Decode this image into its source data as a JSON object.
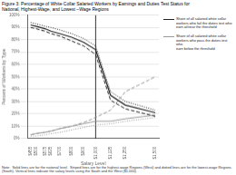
{
  "chart_data": {
    "type": "line",
    "title": "Figure 3: Percentage of White Collar Salaried Workers by Earnings and Duties Test Status for",
    "subtitle": "National, Highest-Wage, and Lowest –Wage Regions",
    "x_label": "Salary Level",
    "y_label": "Percent of Workers by Type",
    "annotations": [
      "Note:  Solid lines are for the national level.  Striped lines are for the highest-wage Regions (West) and dotted lines are for the lowest-wage Regions (South). Vertical lines indicate the salary levels using the South and the West ($1,000)."
    ],
    "x": [
      455,
      500,
      575,
      625,
      700,
      800,
      900,
      1000,
      1125,
      1250,
      1500
    ],
    "series": [
      {
        "name": "Share of all salaried white collar\nworkers who fail the duties test who\nearn at/near the threshold",
        "color": "#222222",
        "line_style": "solid",
        "values": [
          0.92,
          0.91,
          0.89,
          0.87,
          0.85,
          0.82,
          0.78,
          0.72,
          0.35,
          0.27,
          0.21
        ]
      },
      {
        "color": "#222222",
        "line_style": "dashed",
        "values": [
          0.9,
          0.89,
          0.87,
          0.85,
          0.83,
          0.79,
          0.75,
          0.68,
          0.31,
          0.24,
          0.18
        ]
      },
      {
        "color": "#222222",
        "line_style": "dotted",
        "values": [
          0.94,
          0.93,
          0.91,
          0.9,
          0.88,
          0.85,
          0.81,
          0.75,
          0.38,
          0.3,
          0.23
        ]
      },
      {
        "name": "Share of all salaried white collar\nworkers who pass the duties test who\nearn below the threshold",
        "color": "#999999",
        "line_style": "solid",
        "values": [
          0.03,
          0.04,
          0.05,
          0.06,
          0.08,
          0.1,
          0.12,
          0.14,
          0.14,
          0.16,
          0.19
        ]
      },
      {
        "color": "#999999",
        "line_style": "dashed",
        "values": [
          0.03,
          0.04,
          0.05,
          0.06,
          0.08,
          0.1,
          0.13,
          0.17,
          0.23,
          0.38,
          0.5
        ]
      },
      {
        "color": "#999999",
        "line_style": "dotted",
        "values": [
          0.02,
          0.02,
          0.03,
          0.04,
          0.05,
          0.07,
          0.09,
          0.11,
          0.12,
          0.14,
          0.17
        ]
      }
    ],
    "vertical_lines": [
      1000
    ],
    "xlim": [
      430,
      1530
    ],
    "xticks": [
      {
        "value": 455,
        "label": "$455"
      },
      {
        "value": 500,
        "label": "$500"
      },
      {
        "value": 575,
        "label": "$575"
      },
      {
        "value": 625,
        "label": "$625"
      },
      {
        "value": 700,
        "label": "$700"
      },
      {
        "value": 800,
        "label": "$800"
      },
      {
        "value": 900,
        "label": "$900"
      },
      {
        "value": 1000,
        "label": "$1,000"
      },
      {
        "value": 1125,
        "label": "$1,125"
      },
      {
        "value": 1250,
        "label": "$1,250"
      },
      {
        "value": 1500,
        "label": "$1,500"
      }
    ],
    "ylim": [
      0,
      1.0
    ],
    "yticks": [
      {
        "value": 0.0,
        "label": "0%"
      },
      {
        "value": 0.1,
        "label": "10%"
      },
      {
        "value": 0.2,
        "label": "20%"
      },
      {
        "value": 0.3,
        "label": "30%"
      },
      {
        "value": 0.4,
        "label": "40%"
      },
      {
        "value": 0.5,
        "label": "50%"
      },
      {
        "value": 0.6,
        "label": "60%"
      },
      {
        "value": 0.7,
        "label": "70%"
      },
      {
        "value": 0.8,
        "label": "80%"
      },
      {
        "value": 0.9,
        "label": "90%"
      },
      {
        "value": 1.0,
        "label": "100%"
      }
    ],
    "grid": "y",
    "legend": "right"
  }
}
